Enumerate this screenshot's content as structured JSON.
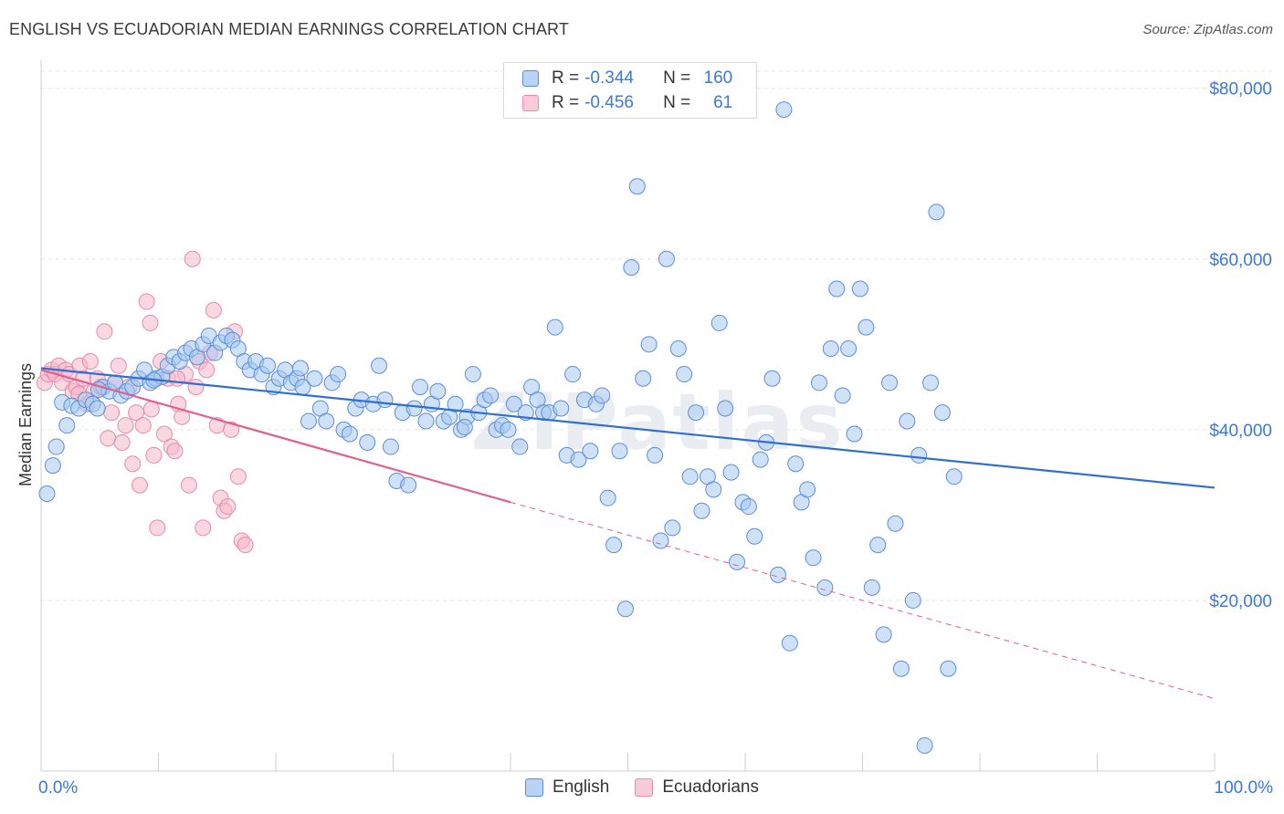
{
  "title": "ENGLISH VS ECUADORIAN MEDIAN EARNINGS CORRELATION CHART",
  "source": "Source: ZipAtlas.com",
  "watermark": "ZIPatlas",
  "legend_stats": [
    {
      "r_label": "R =",
      "r_value": "-0.344",
      "n_label": "N =",
      "n_value": "160"
    },
    {
      "r_label": "R =",
      "r_value": "-0.456",
      "n_label": "N =",
      "n_value": "61"
    }
  ],
  "colors": {
    "english_fill": "#a8c8f0",
    "english_stroke": "#5b8ed8",
    "english_line": "#2f6fd0",
    "ecuadorian_fill": "#f5b8cb",
    "ecuadorian_stroke": "#e88aa8",
    "ecuadorian_line": "#e0608e",
    "axis_label": "#3b78d8",
    "grid": "#e3e3e3"
  },
  "chart_data": {
    "type": "scatter",
    "title": "ENGLISH VS ECUADORIAN MEDIAN EARNINGS CORRELATION CHART",
    "xlabel": "",
    "ylabel": "Median Earnings",
    "xlim": [
      0,
      100
    ],
    "ylim": [
      0,
      82000
    ],
    "x_tick_labels": [
      "0.0%",
      "100.0%"
    ],
    "y_ticks": [
      20000,
      40000,
      60000,
      80000
    ],
    "y_tick_labels": [
      "$20,000",
      "$40,000",
      "$60,000",
      "$80,000"
    ],
    "grid": true,
    "legend_position": "bottom-center",
    "series": [
      {
        "name": "English",
        "r": -0.344,
        "n": 160,
        "trend": {
          "x0": 0,
          "y0": 47200,
          "x1": 100,
          "y1": 33200
        },
        "points": [
          [
            0.5,
            32500
          ],
          [
            1,
            35800
          ],
          [
            1.3,
            38000
          ],
          [
            1.8,
            43200
          ],
          [
            2.2,
            40500
          ],
          [
            2.6,
            42800
          ],
          [
            3.2,
            42500
          ],
          [
            3.8,
            43500
          ],
          [
            4.4,
            43000
          ],
          [
            4.8,
            42500
          ],
          [
            5.3,
            45000
          ],
          [
            5.8,
            44500
          ],
          [
            6.3,
            45500
          ],
          [
            6.8,
            44000
          ],
          [
            7.3,
            44500
          ],
          [
            7.8,
            45000
          ],
          [
            8.3,
            46000
          ],
          [
            8.8,
            47000
          ],
          [
            9.3,
            45500
          ],
          [
            9.8,
            46000
          ],
          [
            10.3,
            46200
          ],
          [
            10.8,
            47500
          ],
          [
            11.3,
            48500
          ],
          [
            11.8,
            48000
          ],
          [
            12.3,
            49000
          ],
          [
            12.8,
            49500
          ],
          [
            13.3,
            48500
          ],
          [
            13.8,
            50000
          ],
          [
            14.3,
            51000
          ],
          [
            14.8,
            49000
          ],
          [
            15.3,
            50200
          ],
          [
            15.8,
            51000
          ],
          [
            16.3,
            50500
          ],
          [
            16.8,
            49500
          ],
          [
            17.3,
            48000
          ],
          [
            17.8,
            47000
          ],
          [
            18.3,
            48000
          ],
          [
            18.8,
            46500
          ],
          [
            19.3,
            47500
          ],
          [
            19.8,
            45000
          ],
          [
            20.3,
            46000
          ],
          [
            20.8,
            47000
          ],
          [
            21.3,
            45500
          ],
          [
            21.8,
            46000
          ],
          [
            22.3,
            45000
          ],
          [
            22.8,
            41000
          ],
          [
            23.3,
            46000
          ],
          [
            23.8,
            42500
          ],
          [
            24.3,
            41000
          ],
          [
            24.8,
            45500
          ],
          [
            25.3,
            46500
          ],
          [
            25.8,
            40000
          ],
          [
            26.3,
            39500
          ],
          [
            26.8,
            42500
          ],
          [
            27.3,
            43500
          ],
          [
            27.8,
            38500
          ],
          [
            28.3,
            43000
          ],
          [
            28.8,
            47500
          ],
          [
            29.3,
            43500
          ],
          [
            29.8,
            38000
          ],
          [
            30.3,
            34000
          ],
          [
            30.8,
            42000
          ],
          [
            31.3,
            33500
          ],
          [
            31.8,
            42500
          ],
          [
            32.3,
            45000
          ],
          [
            32.8,
            41000
          ],
          [
            33.3,
            43000
          ],
          [
            33.8,
            44500
          ],
          [
            34.3,
            41000
          ],
          [
            34.8,
            41500
          ],
          [
            35.3,
            43000
          ],
          [
            35.8,
            40000
          ],
          [
            36.3,
            41500
          ],
          [
            36.8,
            46500
          ],
          [
            37.3,
            42000
          ],
          [
            37.8,
            43500
          ],
          [
            38.3,
            44000
          ],
          [
            38.8,
            40000
          ],
          [
            39.3,
            40500
          ],
          [
            39.8,
            40000
          ],
          [
            40.3,
            43000
          ],
          [
            40.8,
            38000
          ],
          [
            41.3,
            42000
          ],
          [
            41.8,
            45000
          ],
          [
            42.3,
            43500
          ],
          [
            42.8,
            42000
          ],
          [
            43.3,
            42000
          ],
          [
            43.8,
            52000
          ],
          [
            44.3,
            42500
          ],
          [
            44.8,
            37000
          ],
          [
            45.3,
            46500
          ],
          [
            45.8,
            36500
          ],
          [
            46.3,
            43500
          ],
          [
            46.8,
            37500
          ],
          [
            47.3,
            43000
          ],
          [
            47.8,
            44000
          ],
          [
            48.3,
            32000
          ],
          [
            48.8,
            26500
          ],
          [
            49.3,
            37500
          ],
          [
            49.8,
            19000
          ],
          [
            50.3,
            59000
          ],
          [
            50.8,
            68500
          ],
          [
            51.3,
            46000
          ],
          [
            51.8,
            50000
          ],
          [
            52.3,
            37000
          ],
          [
            52.8,
            27000
          ],
          [
            53.3,
            60000
          ],
          [
            53.8,
            28500
          ],
          [
            54.3,
            49500
          ],
          [
            54.8,
            46500
          ],
          [
            55.3,
            34500
          ],
          [
            55.8,
            42000
          ],
          [
            56.3,
            30500
          ],
          [
            56.8,
            34500
          ],
          [
            57.3,
            33000
          ],
          [
            57.8,
            52500
          ],
          [
            58.3,
            42500
          ],
          [
            58.8,
            35000
          ],
          [
            59.3,
            24500
          ],
          [
            59.8,
            31500
          ],
          [
            60.3,
            31000
          ],
          [
            60.8,
            27500
          ],
          [
            61.3,
            36500
          ],
          [
            61.8,
            38500
          ],
          [
            62.3,
            46000
          ],
          [
            62.8,
            23000
          ],
          [
            63.3,
            77500
          ],
          [
            63.8,
            15000
          ],
          [
            64.3,
            36000
          ],
          [
            64.8,
            31500
          ],
          [
            65.3,
            33000
          ],
          [
            65.8,
            25000
          ],
          [
            66.3,
            45500
          ],
          [
            66.8,
            21500
          ],
          [
            67.3,
            49500
          ],
          [
            67.8,
            56500
          ],
          [
            68.3,
            44000
          ],
          [
            68.8,
            49500
          ],
          [
            69.3,
            39500
          ],
          [
            69.8,
            56500
          ],
          [
            70.3,
            52000
          ],
          [
            70.8,
            21500
          ],
          [
            71.3,
            26500
          ],
          [
            71.8,
            16000
          ],
          [
            72.3,
            45500
          ],
          [
            72.8,
            29000
          ],
          [
            73.3,
            12000
          ],
          [
            73.8,
            41000
          ],
          [
            74.3,
            20000
          ],
          [
            74.8,
            37000
          ],
          [
            75.3,
            3000
          ],
          [
            75.8,
            45500
          ],
          [
            76.3,
            65500
          ],
          [
            76.8,
            42000
          ],
          [
            77.3,
            12000
          ],
          [
            77.8,
            34500
          ],
          [
            4.9,
            44700
          ],
          [
            9.6,
            45800
          ],
          [
            22.1,
            47200
          ],
          [
            36.1,
            40300
          ]
        ]
      },
      {
        "name": "Ecuadorians",
        "r": -0.456,
        "n": 61,
        "trend": {
          "x0": 0,
          "y0": 47000,
          "x1": 40,
          "y1": 31500,
          "x1_dashed": 100,
          "y1_dashed": 8500
        },
        "points": [
          [
            0.3,
            45500
          ],
          [
            0.6,
            46500
          ],
          [
            0.9,
            47000
          ],
          [
            1.2,
            46500
          ],
          [
            1.5,
            47500
          ],
          [
            1.8,
            45500
          ],
          [
            2.1,
            47000
          ],
          [
            2.4,
            46500
          ],
          [
            2.7,
            44500
          ],
          [
            3.0,
            45000
          ],
          [
            3.3,
            47500
          ],
          [
            3.6,
            46000
          ],
          [
            3.9,
            43000
          ],
          [
            4.2,
            48000
          ],
          [
            4.5,
            44500
          ],
          [
            4.8,
            46000
          ],
          [
            5.1,
            45000
          ],
          [
            5.4,
            51500
          ],
          [
            5.7,
            39000
          ],
          [
            6.0,
            42000
          ],
          [
            6.3,
            45500
          ],
          [
            6.6,
            47500
          ],
          [
            6.9,
            38500
          ],
          [
            7.2,
            40500
          ],
          [
            7.5,
            45000
          ],
          [
            7.8,
            36000
          ],
          [
            8.1,
            42000
          ],
          [
            8.4,
            33500
          ],
          [
            8.7,
            40500
          ],
          [
            9.0,
            55000
          ],
          [
            9.3,
            52500
          ],
          [
            9.6,
            37000
          ],
          [
            9.9,
            28500
          ],
          [
            10.2,
            48000
          ],
          [
            10.5,
            39500
          ],
          [
            10.8,
            46000
          ],
          [
            11.1,
            38000
          ],
          [
            11.4,
            37500
          ],
          [
            11.7,
            43000
          ],
          [
            12.0,
            41500
          ],
          [
            12.3,
            46500
          ],
          [
            12.6,
            33500
          ],
          [
            12.9,
            60000
          ],
          [
            13.2,
            45000
          ],
          [
            13.5,
            48000
          ],
          [
            13.8,
            28500
          ],
          [
            14.1,
            47000
          ],
          [
            14.4,
            49000
          ],
          [
            14.7,
            54000
          ],
          [
            15.0,
            40500
          ],
          [
            15.3,
            32000
          ],
          [
            15.6,
            30500
          ],
          [
            15.9,
            31000
          ],
          [
            16.2,
            40000
          ],
          [
            16.5,
            51500
          ],
          [
            16.8,
            34500
          ],
          [
            17.1,
            27000
          ],
          [
            17.4,
            26500
          ],
          [
            9.4,
            42400
          ],
          [
            11.6,
            46000
          ],
          [
            3.2,
            44200
          ]
        ]
      }
    ]
  },
  "bottom_legend": [
    {
      "label": "English"
    },
    {
      "label": "Ecuadorians"
    }
  ]
}
